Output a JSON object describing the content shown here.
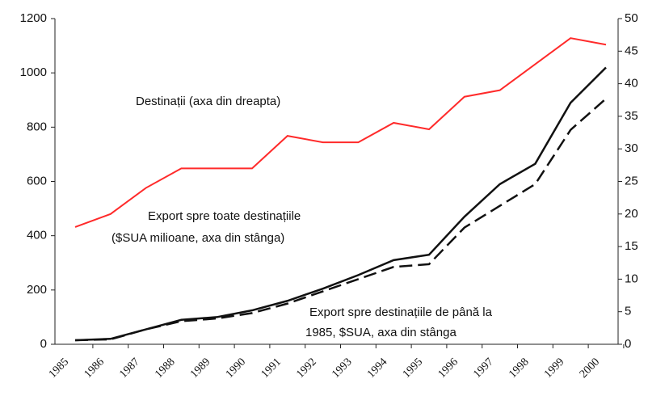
{
  "chart_data": {
    "type": "line",
    "categories": [
      "1985",
      "1986",
      "1987",
      "1988",
      "1989",
      "1990",
      "1991",
      "1992",
      "1993",
      "1994",
      "1995",
      "1996",
      "1997",
      "1998",
      "1999",
      "2000"
    ],
    "series": [
      {
        "color": "#ff2a2a",
        "axis": "y2",
        "dash": false,
        "values": [
          18,
          20,
          24,
          27,
          27,
          27,
          32,
          31,
          31,
          34,
          33,
          38,
          39,
          43,
          47,
          46
        ]
      },
      {
        "color": "#111111",
        "dash": false,
        "values": [
          15,
          20,
          55,
          90,
          100,
          125,
          160,
          205,
          255,
          310,
          330,
          470,
          590,
          665,
          890,
          1020
        ]
      },
      {
        "color": "#111111",
        "dash": true,
        "values": [
          15,
          18,
          55,
          85,
          95,
          115,
          150,
          195,
          240,
          285,
          295,
          430,
          510,
          590,
          790,
          905
        ]
      }
    ],
    "annotations": [
      "Destinații (axa din dreapta)",
      "Export spre toate destinațiile",
      "($SUA milioane, axa din stânga)",
      "Export spre destinațiile de până la",
      "1985, $SUA, axa din stânga"
    ],
    "ylim": [
      0,
      1200
    ],
    "yticks": [
      0,
      200,
      400,
      600,
      800,
      1000,
      1200
    ],
    "y2lim": [
      0,
      50
    ],
    "y2ticks": [
      0,
      5,
      10,
      15,
      20,
      25,
      30,
      35,
      40,
      45,
      50
    ]
  }
}
